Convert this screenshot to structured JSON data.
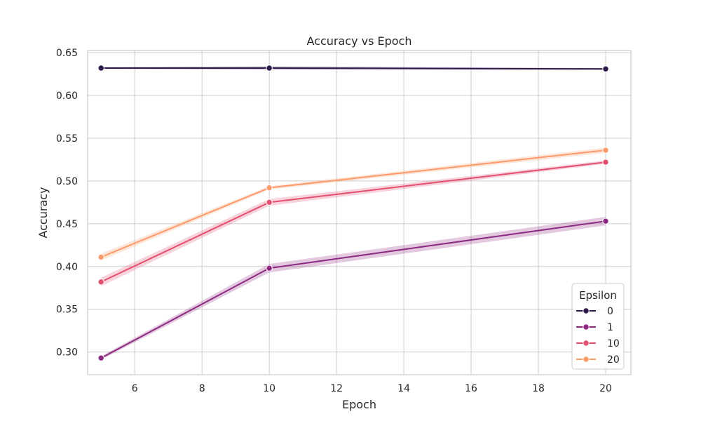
{
  "chart_data": {
    "type": "line",
    "title": "Accuracy vs Epoch",
    "xlabel": "Epoch",
    "ylabel": "Accuracy",
    "x": [
      5,
      10,
      20
    ],
    "xlim": [
      4.6,
      20.75
    ],
    "ylim": [
      0.2735,
      0.6525
    ],
    "xticks": [
      6,
      8,
      10,
      12,
      14,
      16,
      18,
      20
    ],
    "yticks": [
      0.3,
      0.35,
      0.4,
      0.45,
      0.5,
      0.55,
      0.6,
      0.65
    ],
    "grid": true,
    "legend": {
      "title": "Epsilon",
      "placement": "lower-right"
    },
    "series": [
      {
        "name": "0",
        "color": "#2e1a4a",
        "values": [
          0.632,
          0.632,
          0.631
        ],
        "band": [
          [
            0.631,
            0.633
          ],
          [
            0.63,
            0.634
          ],
          [
            0.63,
            0.632
          ]
        ]
      },
      {
        "name": "1",
        "color": "#8c2981",
        "values": [
          0.293,
          0.398,
          0.453
        ],
        "band": [
          [
            0.291,
            0.295
          ],
          [
            0.393,
            0.403
          ],
          [
            0.448,
            0.458
          ]
        ]
      },
      {
        "name": "10",
        "color": "#e34f6f",
        "values": [
          0.382,
          0.475,
          0.522
        ],
        "band": [
          [
            0.377,
            0.387
          ],
          [
            0.471,
            0.479
          ],
          [
            0.52,
            0.524
          ]
        ]
      },
      {
        "name": "20",
        "color": "#fd9a6a",
        "values": [
          0.411,
          0.492,
          0.536
        ],
        "band": [
          [
            0.407,
            0.415
          ],
          [
            0.49,
            0.494
          ],
          [
            0.533,
            0.539
          ]
        ]
      }
    ]
  }
}
